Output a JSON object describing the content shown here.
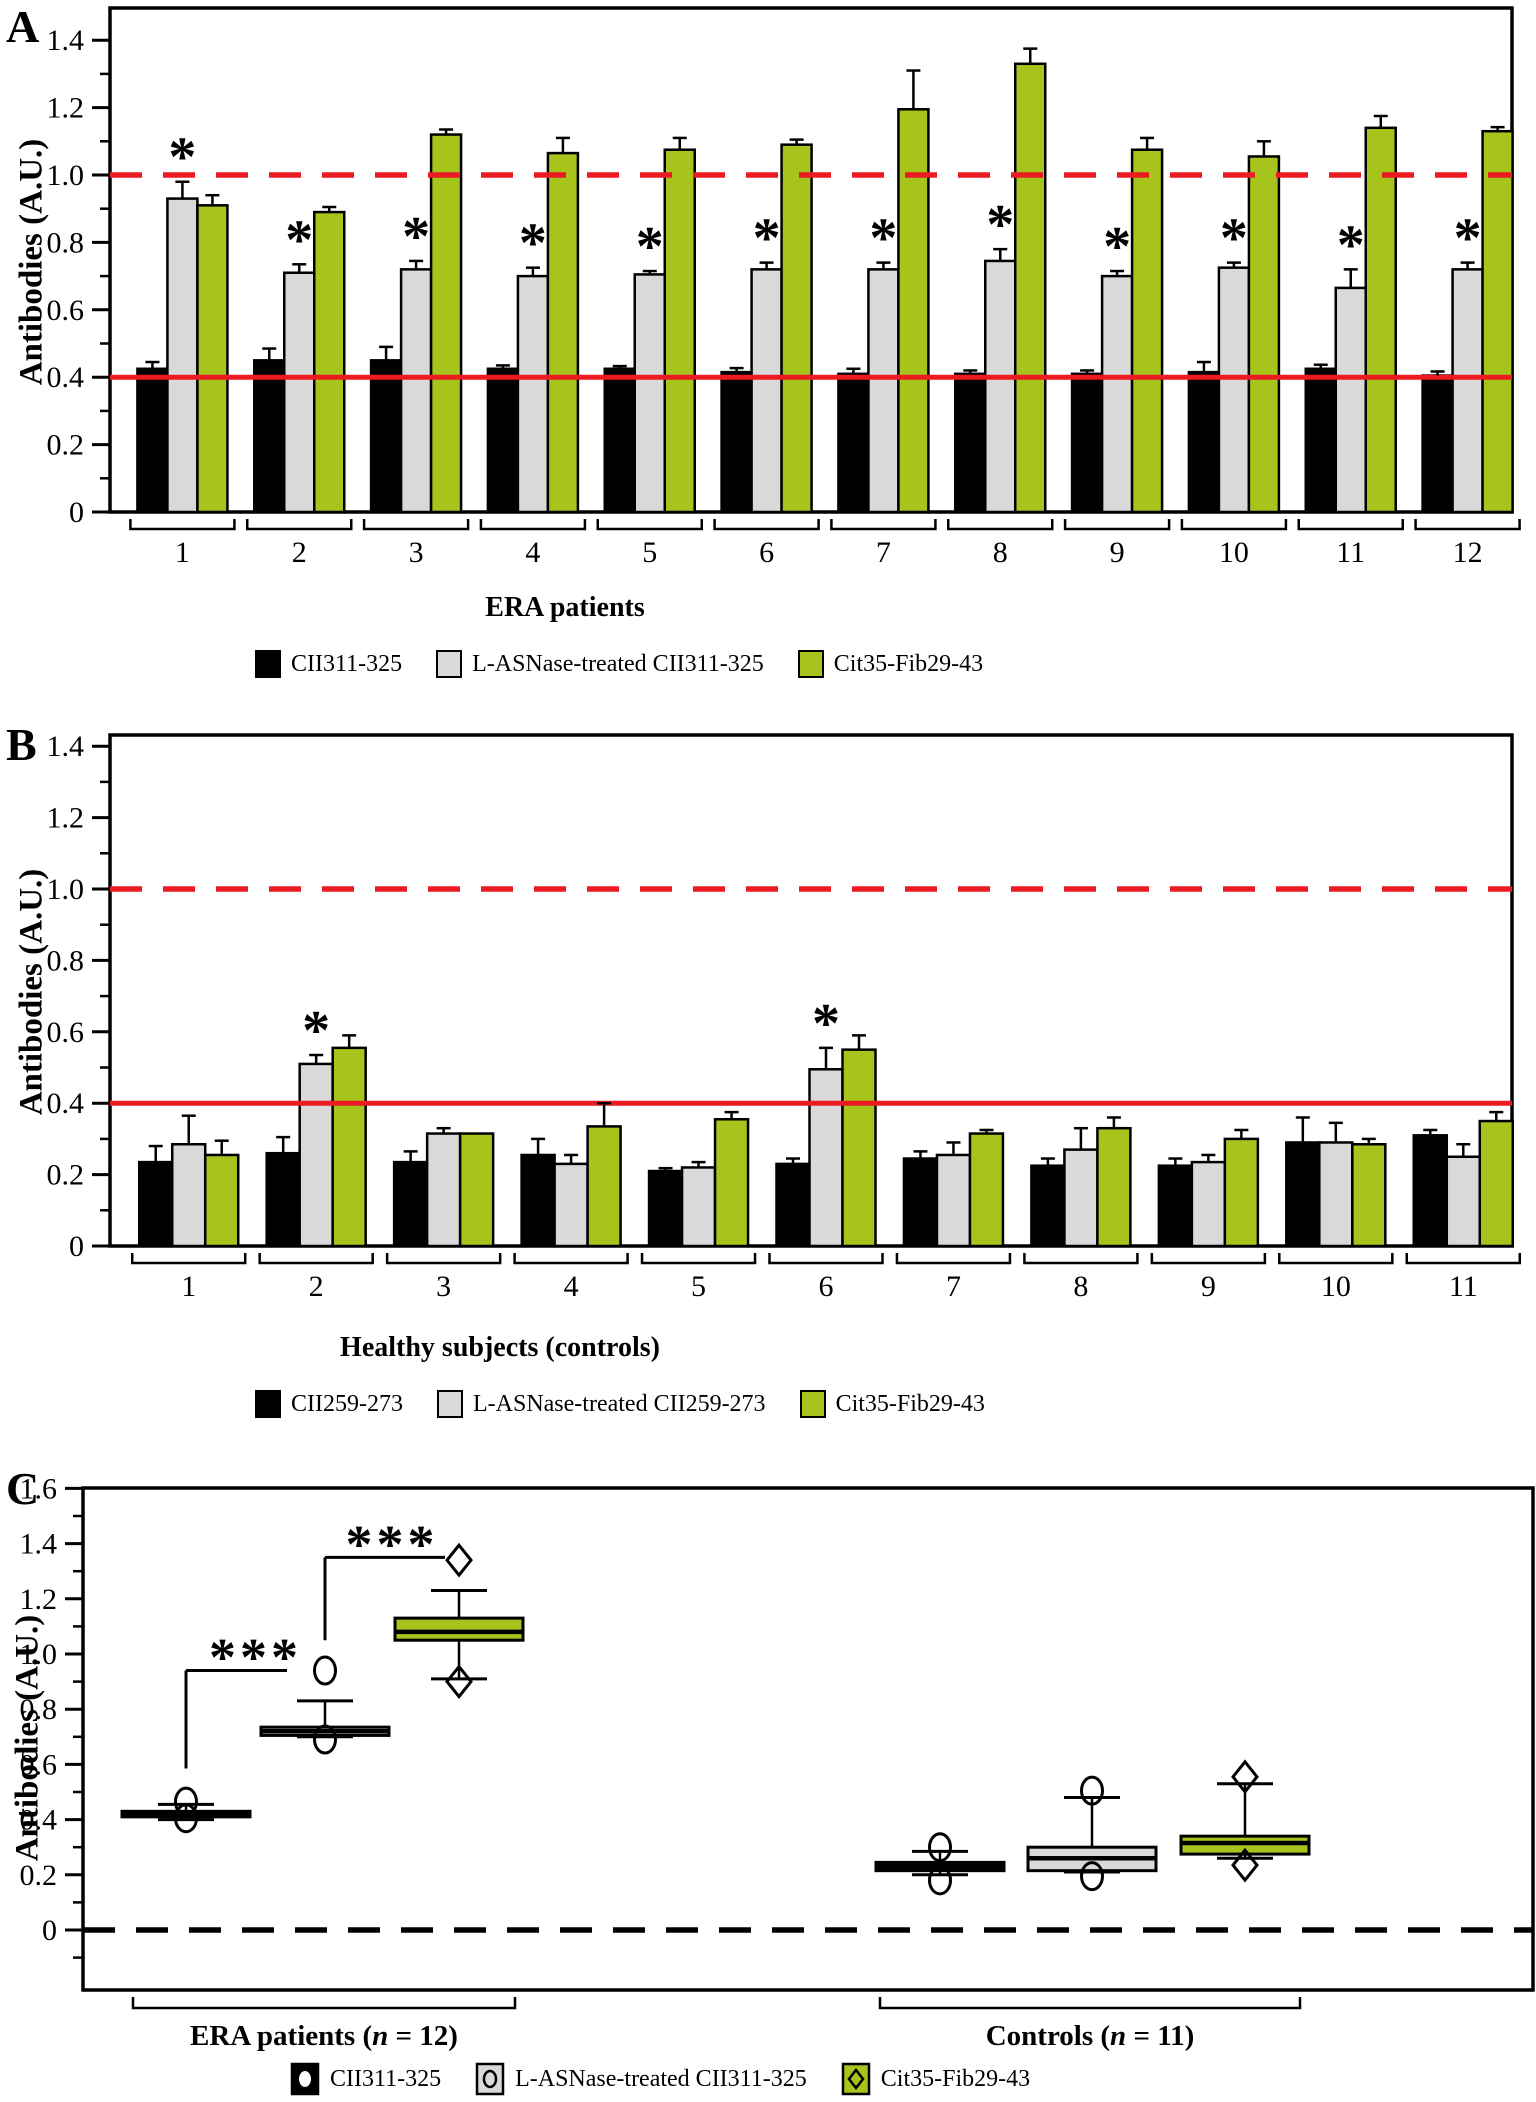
{
  "ylabel_shared": "Antibodies (A.U.)",
  "colors": {
    "black": "#000000",
    "gray": "#d9d9d9",
    "green": "#a6c41c",
    "red": "#ec1b23"
  },
  "chart_data": [
    {
      "panel": "A",
      "type": "bar",
      "xlabel": "ERA patients",
      "ylabel": "Antibodies (A.U.)",
      "ylim": [
        0,
        1.5
      ],
      "yticks_major": [
        0,
        0.2,
        0.4,
        0.6,
        0.8,
        1.0,
        1.2,
        1.4
      ],
      "ytick_labels": [
        "0",
        "0.2",
        "0.4",
        "0.6",
        "0.8",
        "1.0",
        "1.2",
        "1.4"
      ],
      "yticks_minor": [
        0.1,
        0.3,
        0.5,
        0.7,
        0.9,
        1.1,
        1.3
      ],
      "categories": [
        "1",
        "2",
        "3",
        "4",
        "5",
        "6",
        "7",
        "8",
        "9",
        "10",
        "11",
        "12"
      ],
      "series": [
        {
          "name": "CII311-325",
          "color": "#000000",
          "values": [
            0.425,
            0.45,
            0.45,
            0.425,
            0.425,
            0.415,
            0.41,
            0.41,
            0.41,
            0.415,
            0.425,
            0.405
          ],
          "errors": [
            0.02,
            0.035,
            0.04,
            0.01,
            0.008,
            0.012,
            0.015,
            0.01,
            0.01,
            0.03,
            0.012,
            0.012
          ]
        },
        {
          "name": "L-ASNase-treated CII311-325",
          "color": "#d9d9d9",
          "values": [
            0.93,
            0.71,
            0.72,
            0.7,
            0.705,
            0.72,
            0.72,
            0.745,
            0.7,
            0.725,
            0.665,
            0.72
          ],
          "errors": [
            0.05,
            0.025,
            0.025,
            0.025,
            0.01,
            0.02,
            0.02,
            0.035,
            0.015,
            0.015,
            0.055,
            0.02
          ]
        },
        {
          "name": "Cit35-Fib29-43",
          "color": "#a6c41c",
          "values": [
            0.91,
            0.89,
            1.12,
            1.065,
            1.075,
            1.09,
            1.195,
            1.33,
            1.075,
            1.055,
            1.14,
            1.13
          ],
          "errors": [
            0.03,
            0.015,
            0.015,
            0.045,
            0.035,
            0.015,
            0.115,
            0.045,
            0.035,
            0.045,
            0.035,
            0.012
          ]
        }
      ],
      "asterisk_series": 1,
      "asterisk_categories": [
        "1",
        "2",
        "3",
        "4",
        "5",
        "6",
        "7",
        "8",
        "9",
        "10",
        "11",
        "12"
      ],
      "reference_lines": [
        {
          "y": 1.0,
          "color": "#ec1b23",
          "style": "dashed"
        },
        {
          "y": 0.4,
          "color": "#ec1b23",
          "style": "solid"
        }
      ],
      "legend": [
        {
          "label": "CII311-325",
          "color": "#000000"
        },
        {
          "label": "L-ASNase-treated CII311-325",
          "color": "#d9d9d9"
        },
        {
          "label": "Cit35-Fib29-43",
          "color": "#a6c41c"
        }
      ]
    },
    {
      "panel": "B",
      "type": "bar",
      "xlabel": "Healthy subjects (controls)",
      "ylabel": "Antibodies (A.U.)",
      "ylim": [
        0,
        1.43
      ],
      "yticks_major": [
        0,
        0.2,
        0.4,
        0.6,
        0.8,
        1.0,
        1.2,
        1.4
      ],
      "ytick_labels": [
        "0",
        "0.2",
        "0.4",
        "0.6",
        "0.8",
        "1.0",
        "1.2",
        "1.4"
      ],
      "yticks_minor": [
        0.1,
        0.3,
        0.5,
        0.7,
        0.9,
        1.1,
        1.3
      ],
      "categories": [
        "1",
        "2",
        "3",
        "4",
        "5",
        "6",
        "7",
        "8",
        "9",
        "10",
        "11"
      ],
      "series": [
        {
          "name": "CII259-273",
          "color": "#000000",
          "values": [
            0.235,
            0.26,
            0.235,
            0.255,
            0.21,
            0.23,
            0.245,
            0.225,
            0.225,
            0.29,
            0.31
          ],
          "errors": [
            0.045,
            0.045,
            0.03,
            0.045,
            0.008,
            0.015,
            0.02,
            0.02,
            0.02,
            0.07,
            0.015
          ]
        },
        {
          "name": "L-ASNase-treated CII259-273",
          "color": "#d9d9d9",
          "values": [
            0.285,
            0.51,
            0.315,
            0.23,
            0.22,
            0.495,
            0.255,
            0.27,
            0.235,
            0.29,
            0.25
          ],
          "errors": [
            0.08,
            0.025,
            0.015,
            0.025,
            0.015,
            0.06,
            0.035,
            0.06,
            0.02,
            0.055,
            0.035
          ]
        },
        {
          "name": "Cit35-Fib29-43",
          "color": "#a6c41c",
          "values": [
            0.255,
            0.555,
            0.315,
            0.335,
            0.355,
            0.55,
            0.315,
            0.33,
            0.3,
            0.285,
            0.35
          ],
          "errors": [
            0.04,
            0.035,
            0,
            0.065,
            0.02,
            0.04,
            0.01,
            0.03,
            0.025,
            0.015,
            0.025
          ]
        }
      ],
      "asterisk_series": 1,
      "asterisk_categories": [
        "2",
        "6"
      ],
      "reference_lines": [
        {
          "y": 1.0,
          "color": "#ec1b23",
          "style": "dashed"
        },
        {
          "y": 0.4,
          "color": "#ec1b23",
          "style": "solid"
        }
      ],
      "legend": [
        {
          "label": "CII259-273",
          "color": "#000000"
        },
        {
          "label": "L-ASNase-treated CII259-273",
          "color": "#d9d9d9"
        },
        {
          "label": "Cit35-Fib29-43",
          "color": "#a6c41c"
        }
      ]
    },
    {
      "panel": "C",
      "type": "box",
      "ylabel": "Antibodies (A.U.)",
      "ylim": [
        -0.21,
        1.6
      ],
      "yticks_major": [
        0,
        0.2,
        0.4,
        0.6,
        0.8,
        1.0,
        1.2,
        1.4,
        1.6
      ],
      "ytick_labels": [
        "0",
        "0.2",
        "0.4",
        "0.6",
        "0.8",
        "1.0",
        "1.2",
        "1.4",
        "1.6"
      ],
      "yticks_minor": [
        -0.1,
        0.1,
        0.3,
        0.5,
        0.7,
        0.9,
        1.1,
        1.3,
        1.5
      ],
      "groups": [
        {
          "label_pre": "ERA patients (",
          "label_n": "n",
          "label_post": " = 12)",
          "boxes": [
            {
              "name": "CII311-325",
              "color": "#000000",
              "marker": "circle",
              "q1": 0.41,
              "median": 0.42,
              "q3": 0.43,
              "whisker_low": 0.4,
              "whisker_high": 0.455,
              "outliers_high": [
                0.465
              ],
              "outliers_low": [
                0.405
              ]
            },
            {
              "name": "L-ASNase-treated CII311-325",
              "color": "#d9d9d9",
              "marker": "circle",
              "q1": 0.705,
              "median": 0.72,
              "q3": 0.735,
              "whisker_low": 0.7,
              "whisker_high": 0.83,
              "outliers_high": [
                0.94
              ],
              "outliers_low": [
                0.69
              ]
            },
            {
              "name": "Cit35-Fib29-43",
              "color": "#a6c41c",
              "marker": "diamond",
              "q1": 1.05,
              "median": 1.08,
              "q3": 1.13,
              "whisker_low": 0.91,
              "whisker_high": 1.23,
              "outliers_high": [
                1.34
              ],
              "outliers_low": [
                0.9
              ]
            }
          ]
        },
        {
          "label_pre": "Controls (",
          "label_n": "n",
          "label_post": " = 11)",
          "boxes": [
            {
              "name": "CII311-325",
              "color": "#000000",
              "marker": "circle",
              "q1": 0.215,
              "median": 0.23,
              "q3": 0.245,
              "whisker_low": 0.2,
              "whisker_high": 0.285,
              "outliers_high": [
                0.3
              ],
              "outliers_low": [
                0.18
              ]
            },
            {
              "name": "L-ASNase-treated CII311-325",
              "color": "#d9d9d9",
              "marker": "circle",
              "q1": 0.215,
              "median": 0.26,
              "q3": 0.3,
              "whisker_low": 0.21,
              "whisker_high": 0.48,
              "outliers_high": [
                0.505
              ],
              "outliers_low": [
                0.195
              ]
            },
            {
              "name": "Cit35-Fib29-43",
              "color": "#a6c41c",
              "marker": "diamond",
              "q1": 0.275,
              "median": 0.315,
              "q3": 0.34,
              "whisker_low": 0.26,
              "whisker_high": 0.53,
              "outliers_high": [
                0.555
              ],
              "outliers_low": [
                0.235
              ]
            }
          ]
        }
      ],
      "significance": [
        {
          "stars": "***",
          "v_box": 0,
          "v_y1": 0.585,
          "v_y2": 0.94,
          "h_from": 0,
          "h_to": 1,
          "h_end_offset": -38,
          "h_y": 0.94
        },
        {
          "stars": "***",
          "v_box": 1,
          "v_y1": 1.05,
          "v_y2": 1.35,
          "h_from": 1,
          "h_to": 2,
          "h_end_offset": -14,
          "h_y": 1.35
        }
      ],
      "reference_lines": [
        {
          "y": 0,
          "color": "#000000",
          "style": "dashed"
        }
      ],
      "legend": [
        {
          "label": "CII311-325",
          "color": "#000000",
          "marker": "circle-white"
        },
        {
          "label": "L-ASNase-treated CII311-325",
          "color": "#d9d9d9",
          "marker": "circle"
        },
        {
          "label": "Cit35-Fib29-43",
          "color": "#a6c41c",
          "marker": "diamond"
        }
      ]
    }
  ]
}
